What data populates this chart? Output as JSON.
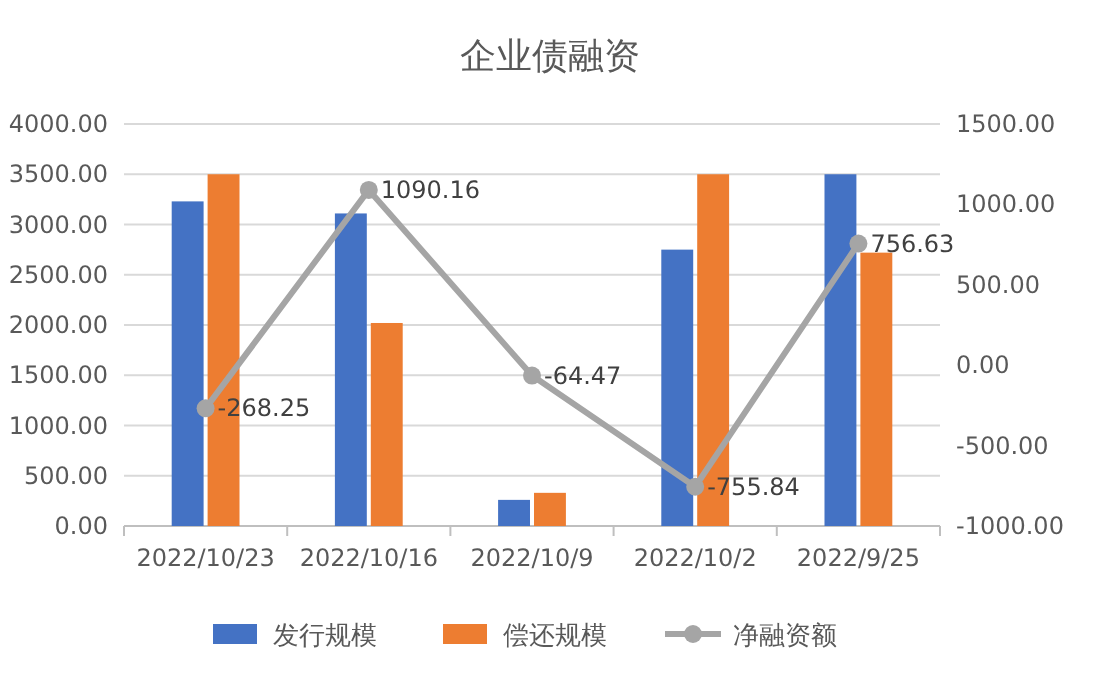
{
  "chart_data": {
    "type": "bar",
    "title": "企业债融资",
    "categories": [
      "2022/10/23",
      "2022/10/16",
      "2022/10/9",
      "2022/10/2",
      "2022/9/25"
    ],
    "series": [
      {
        "name": "发行规模",
        "color": "#4472c4",
        "values": [
          3230,
          3110,
          260,
          2750,
          3500
        ]
      },
      {
        "name": "偿还规模",
        "color": "#ed7d31",
        "values": [
          3500,
          2020,
          330,
          3500,
          2720
        ]
      },
      {
        "name": "净融资额",
        "type": "line",
        "axis": "y2",
        "color": "#a5a5a5",
        "marker": "circle",
        "values": [
          -268.25,
          1090.16,
          -64.47,
          -755.84,
          756.63
        ],
        "value_labels": [
          "-268.25",
          "1090.16",
          "-64.47",
          "-755.84",
          "756.63"
        ]
      }
    ],
    "ylim": [
      0,
      4000
    ],
    "yticks": [
      {
        "value": 0,
        "label": "0.00"
      },
      {
        "value": 500,
        "label": "500.00"
      },
      {
        "value": 1000,
        "label": "1000.00"
      },
      {
        "value": 1500,
        "label": "1500.00"
      },
      {
        "value": 2000,
        "label": "2000.00"
      },
      {
        "value": 2500,
        "label": "2500.00"
      },
      {
        "value": 3000,
        "label": "3000.00"
      },
      {
        "value": 3500,
        "label": "3500.00"
      },
      {
        "value": 4000,
        "label": "4000.00"
      }
    ],
    "y2lim": [
      -1000,
      1500
    ],
    "y2ticks": [
      {
        "value": -1000,
        "label": "-1000.00"
      },
      {
        "value": -500,
        "label": "-500.00"
      },
      {
        "value": 0,
        "label": "0.00"
      },
      {
        "value": 500,
        "label": "500.00"
      },
      {
        "value": 1000,
        "label": "1000.00"
      },
      {
        "value": 1500,
        "label": "1500.00"
      }
    ],
    "grid": "y",
    "legend": "bottom"
  }
}
